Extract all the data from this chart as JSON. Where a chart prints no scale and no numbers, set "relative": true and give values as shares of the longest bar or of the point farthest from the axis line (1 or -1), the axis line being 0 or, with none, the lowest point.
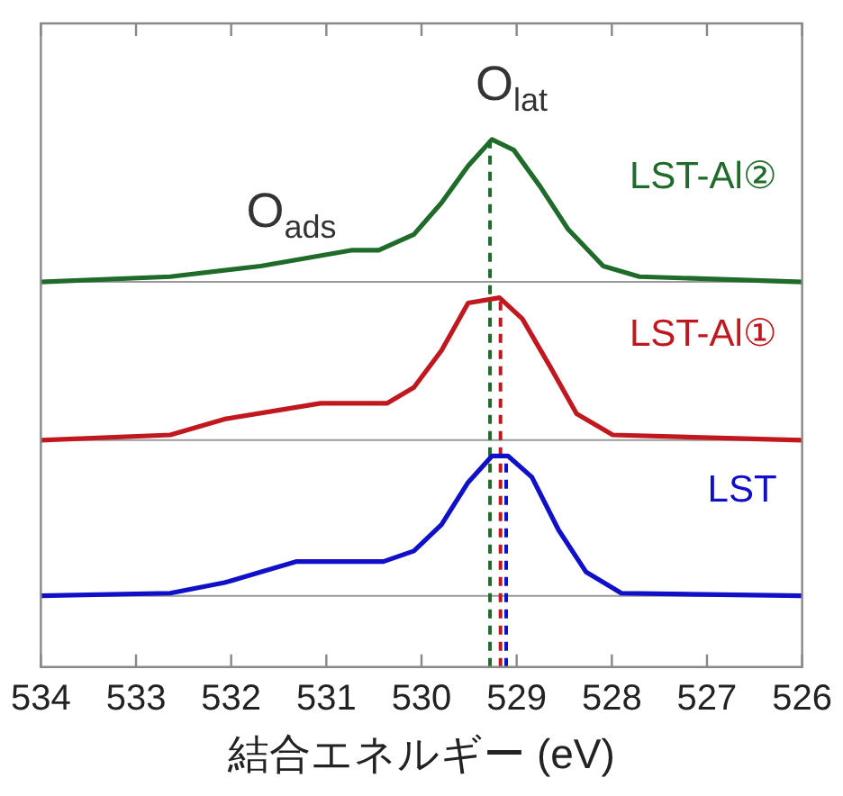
{
  "chart_data": {
    "type": "line",
    "relative": true,
    "xlabel": "結合エネルギー (eV)",
    "xlim": [
      534,
      526
    ],
    "xticks": [
      534,
      533,
      532,
      531,
      530,
      529,
      528,
      527,
      526
    ],
    "legend": false,
    "grid": false,
    "marker": "none",
    "line_style": "solid",
    "series": [
      {
        "name": "LST-Al②",
        "color": "#1e6b2a",
        "x": [
          534,
          532.64,
          531.69,
          530.74,
          530.45,
          530.08,
          529.79,
          529.51,
          529.26,
          529.03,
          528.75,
          528.46,
          528.09,
          527.71,
          526
        ],
        "values": [
          0.73,
          0.74,
          0.76,
          0.79,
          0.79,
          0.82,
          0.88,
          0.95,
          1.0,
          0.98,
          0.91,
          0.83,
          0.76,
          0.74,
          0.73
        ]
      },
      {
        "name": "LST-Al①",
        "color": "#c0181e",
        "x": [
          534,
          532.64,
          532.07,
          531.06,
          530.36,
          530.08,
          529.79,
          529.51,
          529.18,
          528.94,
          528.65,
          528.37,
          527.99,
          526
        ],
        "values": [
          0.43,
          0.44,
          0.47,
          0.5,
          0.5,
          0.53,
          0.6,
          0.69,
          0.7,
          0.66,
          0.57,
          0.48,
          0.44,
          0.43
        ]
      },
      {
        "name": "LST",
        "color": "#1010c8",
        "x": [
          534,
          532.64,
          532.07,
          531.69,
          531.31,
          530.74,
          530.4,
          530.08,
          529.79,
          529.51,
          529.26,
          529.09,
          528.84,
          528.56,
          528.27,
          527.9,
          526
        ],
        "values": [
          0.135,
          0.14,
          0.16,
          0.18,
          0.2,
          0.2,
          0.2,
          0.22,
          0.27,
          0.35,
          0.4,
          0.4,
          0.36,
          0.26,
          0.18,
          0.14,
          0.135
        ]
      },
      {
        "line_style": "dashed",
        "color": "#1e6b2a",
        "x": [
          529.28,
          529.28
        ],
        "values": [
          0,
          1.0
        ]
      },
      {
        "line_style": "dashed",
        "color": "#c0181e",
        "x": [
          529.17,
          529.17
        ],
        "values": [
          0,
          0.7
        ]
      },
      {
        "line_style": "dashed",
        "color": "#1010c8",
        "x": [
          529.11,
          529.11
        ],
        "values": [
          0,
          0.4
        ]
      }
    ],
    "ref_lines": [
      {
        "axis": "y",
        "value": 0.73,
        "color": "#999999"
      },
      {
        "axis": "y",
        "value": 0.43,
        "color": "#999999"
      },
      {
        "axis": "y",
        "value": 0.135,
        "color": "#999999"
      }
    ],
    "annotations": [
      {
        "text": "O$_{ads}$",
        "x": 531.69,
        "y": 0.76
      },
      {
        "text": "O$_{lat}$",
        "x": 529.28,
        "y": 1.0
      }
    ]
  }
}
